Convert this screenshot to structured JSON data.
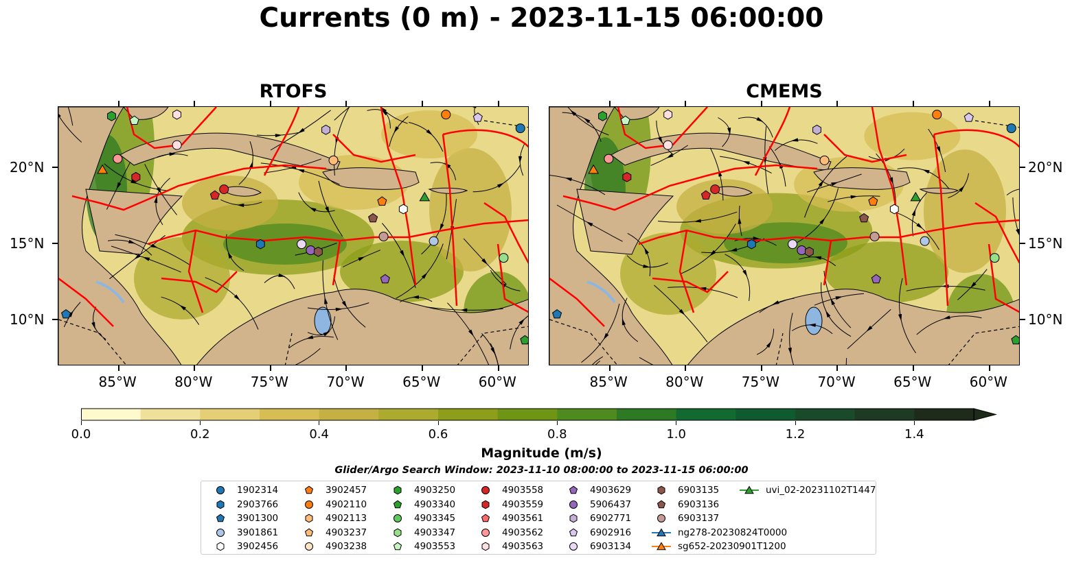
{
  "title": "Currents (0 m) - 2023-11-15 06:00:00",
  "panels": [
    {
      "title": "RTOFS"
    },
    {
      "title": "CMEMS"
    }
  ],
  "map": {
    "lon_range": [
      -89,
      -58
    ],
    "lat_range": [
      7,
      24
    ],
    "x_ticks": [
      "85°W",
      "80°W",
      "75°W",
      "70°W",
      "65°W",
      "60°W"
    ],
    "y_ticks": [
      "20°N",
      "15°N",
      "10°N"
    ],
    "land_color": "#d2b48c",
    "eez_color": "#ff0000"
  },
  "colorbar": {
    "label": "Magnitude (m/s)",
    "ticks": [
      "0.0",
      "0.2",
      "0.4",
      "0.6",
      "0.8",
      "1.0",
      "1.2",
      "1.4"
    ],
    "range": [
      0,
      1.5
    ],
    "extend": "max",
    "colors": [
      "#fffacd",
      "#f0e19a",
      "#e5cf76",
      "#d6be55",
      "#c5b043",
      "#acab2f",
      "#8e9e1a",
      "#6f9515",
      "#4f8a20",
      "#2e7a24",
      "#136a30",
      "#0f5a2e",
      "#1a4a2a",
      "#1f3a22",
      "#1e2a1a"
    ]
  },
  "search_window": "Glider/Argo Search Window: 2023-11-10 08:00:00 to 2023-11-15 06:00:00",
  "legend": [
    [
      "1902314",
      "#1f77b4",
      "circle"
    ],
    [
      "2903766",
      "#1f77b4",
      "hexagon"
    ],
    [
      "3901300",
      "#1f77b4",
      "pentagon"
    ],
    [
      "3901861",
      "#aec7e8",
      "circle"
    ],
    [
      "3902456",
      "#ffffff",
      "hexagon"
    ],
    [
      "3902457",
      "#ff7f0e",
      "pentagon"
    ],
    [
      "4902110",
      "#ff7f0e",
      "circle"
    ],
    [
      "4902113",
      "#ffbb78",
      "hexagon"
    ],
    [
      "4903237",
      "#ffbb78",
      "pentagon"
    ],
    [
      "4903238",
      "#ffe4c4",
      "circle"
    ],
    [
      "4903250",
      "#2ca02c",
      "hexagon"
    ],
    [
      "4903340",
      "#2ca02c",
      "pentagon"
    ],
    [
      "4903345",
      "#5ec95e",
      "circle"
    ],
    [
      "4903347",
      "#98df8a",
      "hexagon"
    ],
    [
      "4903553",
      "#c5f5c0",
      "pentagon"
    ],
    [
      "4903558",
      "#d62728",
      "circle"
    ],
    [
      "4903559",
      "#d62728",
      "hexagon"
    ],
    [
      "4903561",
      "#ff6b6b",
      "pentagon"
    ],
    [
      "4903562",
      "#ff9896",
      "circle"
    ],
    [
      "4903563",
      "#ffe0e0",
      "hexagon"
    ],
    [
      "4903629",
      "#9467bd",
      "pentagon"
    ],
    [
      "5906437",
      "#9467bd",
      "circle"
    ],
    [
      "6902771",
      "#c5b0d5",
      "hexagon"
    ],
    [
      "6902916",
      "#d8c8f0",
      "pentagon"
    ],
    [
      "6903134",
      "#ead8f5",
      "circle"
    ],
    [
      "6903135",
      "#8c564b",
      "hexagon"
    ],
    [
      "6903136",
      "#8c564b",
      "pentagon"
    ],
    [
      "6903137",
      "#c49c94",
      "circle"
    ],
    [
      "ng278-20230824T0000",
      "#1f77b4",
      "triangle"
    ],
    [
      "sg652-20230901T1200",
      "#ff7f0e",
      "triangle"
    ],
    [
      "uvi_02-20231102T1447",
      "#2ca02c",
      "triangle"
    ]
  ],
  "platforms": {
    "rtofs": [
      [
        -85.5,
        23.4,
        "#2ca02c",
        "hexagon"
      ],
      [
        -84,
        23.1,
        "#c5f5c0",
        "pentagon"
      ],
      [
        -81.2,
        23.5,
        "#ffe0e0",
        "hexagon"
      ],
      [
        -81.2,
        21.5,
        "#ffe0e0",
        "circle"
      ],
      [
        -85.1,
        20.6,
        "#ff9896",
        "circle"
      ],
      [
        -86.1,
        19.9,
        "#ff7f0e",
        "triangle"
      ],
      [
        -83.9,
        19.4,
        "#d62728",
        "hexagon"
      ],
      [
        -78.7,
        18.2,
        "#d62728",
        "pentagon"
      ],
      [
        -78.1,
        18.6,
        "#d62728",
        "circle"
      ],
      [
        -71.4,
        22.5,
        "#c5b0d5",
        "hexagon"
      ],
      [
        -70.9,
        20.5,
        "#ffbb78",
        "circle"
      ],
      [
        -63.5,
        23.5,
        "#ff7f0e",
        "circle"
      ],
      [
        -61.4,
        23.3,
        "#d8c8f0",
        "pentagon"
      ],
      [
        -58.6,
        22.6,
        "#1f77b4",
        "circle"
      ],
      [
        -67.7,
        17.8,
        "#ff7f0e",
        "pentagon"
      ],
      [
        -66.3,
        17.3,
        "#ffffff",
        "hexagon"
      ],
      [
        -64.9,
        18.1,
        "#2ca02c",
        "triangle"
      ],
      [
        -68.3,
        16.7,
        "#8c564b",
        "pentagon"
      ],
      [
        -67.6,
        15.5,
        "#c49c94",
        "circle"
      ],
      [
        -64.3,
        15.2,
        "#aec7e8",
        "circle"
      ],
      [
        -59.7,
        14.1,
        "#98df8a",
        "circle"
      ],
      [
        -75.7,
        15,
        "#1f77b4",
        "hexagon"
      ],
      [
        -73,
        15,
        "#ead8f5",
        "circle"
      ],
      [
        -72.4,
        14.6,
        "#9467bd",
        "circle"
      ],
      [
        -71.9,
        14.5,
        "#8c564b",
        "hexagon"
      ],
      [
        -67.5,
        12.7,
        "#9467bd",
        "pentagon"
      ],
      [
        -88.5,
        10.4,
        "#1f77b4",
        "pentagon"
      ],
      [
        -58.3,
        8.7,
        "#2ca02c",
        "pentagon"
      ]
    ],
    "cmems": [
      [
        -85.5,
        23.4,
        "#2ca02c",
        "hexagon"
      ],
      [
        -84,
        23.1,
        "#c5f5c0",
        "pentagon"
      ],
      [
        -81.2,
        23.5,
        "#ffe0e0",
        "hexagon"
      ],
      [
        -81.2,
        21.5,
        "#ffe0e0",
        "circle"
      ],
      [
        -85.1,
        20.6,
        "#ff9896",
        "circle"
      ],
      [
        -86.1,
        19.9,
        "#ff7f0e",
        "triangle"
      ],
      [
        -83.9,
        19.4,
        "#d62728",
        "hexagon"
      ],
      [
        -78.7,
        18.2,
        "#d62728",
        "pentagon"
      ],
      [
        -78.1,
        18.6,
        "#d62728",
        "circle"
      ],
      [
        -71.4,
        22.5,
        "#c5b0d5",
        "hexagon"
      ],
      [
        -70.9,
        20.5,
        "#ffbb78",
        "circle"
      ],
      [
        -63.5,
        23.5,
        "#ff7f0e",
        "circle"
      ],
      [
        -61.4,
        23.3,
        "#d8c8f0",
        "pentagon"
      ],
      [
        -58.6,
        22.6,
        "#1f77b4",
        "circle"
      ],
      [
        -67.7,
        17.8,
        "#ff7f0e",
        "pentagon"
      ],
      [
        -66.3,
        17.3,
        "#ffffff",
        "hexagon"
      ],
      [
        -64.9,
        18.1,
        "#2ca02c",
        "triangle"
      ],
      [
        -68.3,
        16.7,
        "#8c564b",
        "pentagon"
      ],
      [
        -67.6,
        15.5,
        "#c49c94",
        "circle"
      ],
      [
        -64.3,
        15.2,
        "#aec7e8",
        "circle"
      ],
      [
        -59.7,
        14.1,
        "#98df8a",
        "circle"
      ],
      [
        -75.7,
        15,
        "#1f77b4",
        "hexagon"
      ],
      [
        -73,
        15,
        "#ead8f5",
        "circle"
      ],
      [
        -72.4,
        14.6,
        "#9467bd",
        "circle"
      ],
      [
        -71.9,
        14.5,
        "#8c564b",
        "hexagon"
      ],
      [
        -67.5,
        12.7,
        "#9467bd",
        "pentagon"
      ],
      [
        -88.5,
        10.4,
        "#1f77b4",
        "pentagon"
      ],
      [
        -58.3,
        8.7,
        "#2ca02c",
        "pentagon"
      ]
    ]
  }
}
